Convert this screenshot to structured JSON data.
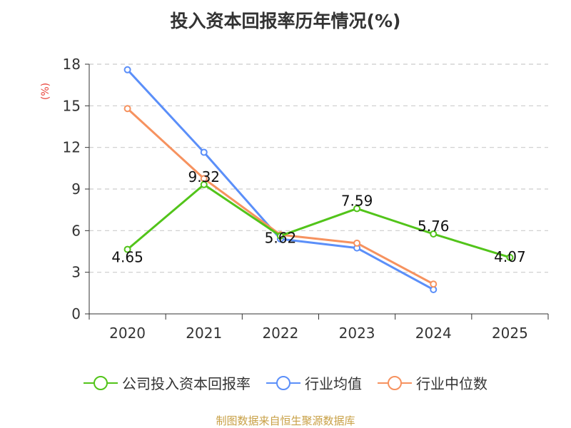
{
  "chart_data": {
    "type": "line",
    "title": "投入资本回报率历年情况(%)",
    "ylabel": "(%)",
    "xlabel": "",
    "categories": [
      "2020",
      "2021",
      "2022",
      "2023",
      "2024",
      "2025"
    ],
    "yticks": [
      0,
      3,
      6,
      9,
      12,
      15,
      18
    ],
    "ylim": [
      0,
      18
    ],
    "grid": true,
    "legend_position": "bottom",
    "series": [
      {
        "name": "公司投入资本回报率",
        "color": "#52c41a",
        "values": [
          4.65,
          9.32,
          5.62,
          7.59,
          5.76,
          4.07
        ],
        "labels": [
          "4.65",
          "9.32",
          "5.62",
          "7.59",
          "5.76",
          "4.07"
        ]
      },
      {
        "name": "行业均值",
        "color": "#5b8ff9",
        "values": [
          17.6,
          11.65,
          5.4,
          4.75,
          1.75,
          null
        ]
      },
      {
        "name": "行业中位数",
        "color": "#f6925f",
        "values": [
          14.8,
          9.75,
          5.7,
          5.1,
          2.15,
          null
        ]
      }
    ]
  },
  "footer": {
    "source": "制图数据来自恒生聚源数据库"
  }
}
